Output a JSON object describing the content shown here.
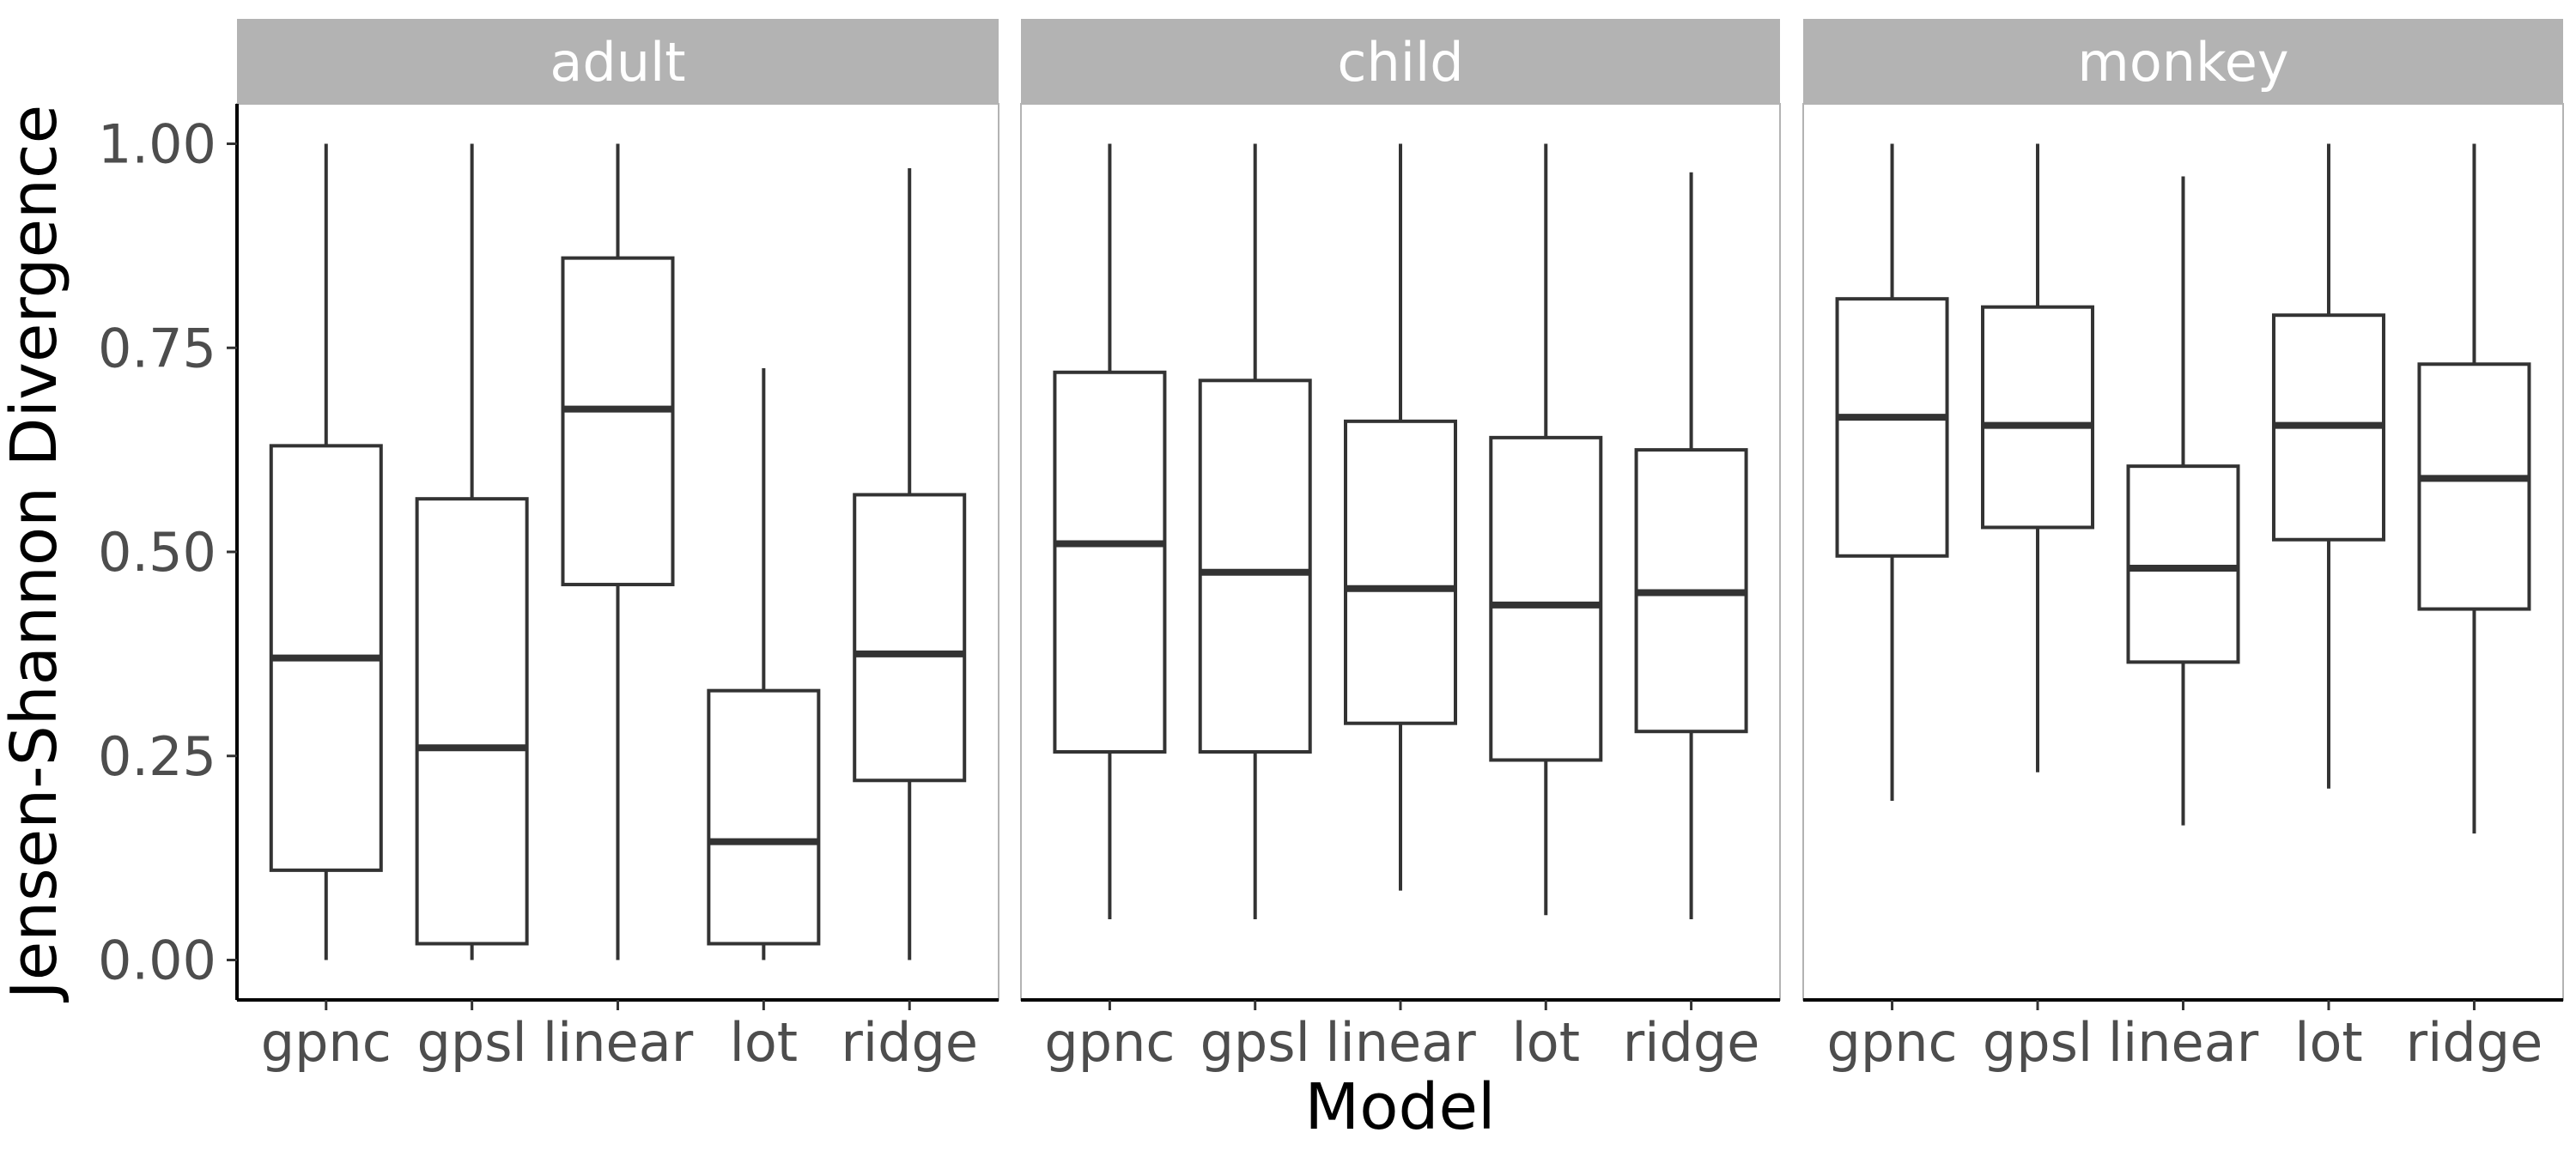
{
  "chart_data": {
    "type": "boxplot",
    "xlabel": "Model",
    "ylabel": "Jensen-Shannon Divergence",
    "ylim": [
      -0.05,
      1.05
    ],
    "yticks": [
      0.0,
      0.25,
      0.5,
      0.75,
      1.0
    ],
    "ytick_labels": [
      "0.00",
      "0.25",
      "0.50",
      "0.75",
      "1.00"
    ],
    "categories": [
      "gpnc",
      "gpsl",
      "linear",
      "lot",
      "ridge"
    ],
    "grid": false,
    "panels": [
      {
        "name": "adult",
        "boxes": [
          {
            "category": "gpnc",
            "min": 0.0,
            "q1": 0.11,
            "median": 0.37,
            "q3": 0.63,
            "max": 1.0
          },
          {
            "category": "gpsl",
            "min": 0.0,
            "q1": 0.02,
            "median": 0.26,
            "q3": 0.565,
            "max": 1.0
          },
          {
            "category": "linear",
            "min": 0.0,
            "q1": 0.46,
            "median": 0.675,
            "q3": 0.86,
            "max": 1.0
          },
          {
            "category": "lot",
            "min": 0.0,
            "q1": 0.02,
            "median": 0.145,
            "q3": 0.33,
            "max": 0.725
          },
          {
            "category": "ridge",
            "min": 0.0,
            "q1": 0.22,
            "median": 0.375,
            "q3": 0.57,
            "max": 0.97
          }
        ]
      },
      {
        "name": "child",
        "boxes": [
          {
            "category": "gpnc",
            "min": 0.05,
            "q1": 0.255,
            "median": 0.51,
            "q3": 0.72,
            "max": 1.0
          },
          {
            "category": "gpsl",
            "min": 0.05,
            "q1": 0.255,
            "median": 0.475,
            "q3": 0.71,
            "max": 1.0
          },
          {
            "category": "linear",
            "min": 0.085,
            "q1": 0.29,
            "median": 0.455,
            "q3": 0.66,
            "max": 1.0
          },
          {
            "category": "lot",
            "min": 0.055,
            "q1": 0.245,
            "median": 0.435,
            "q3": 0.64,
            "max": 1.0
          },
          {
            "category": "ridge",
            "min": 0.05,
            "q1": 0.28,
            "median": 0.45,
            "q3": 0.625,
            "max": 0.965
          }
        ]
      },
      {
        "name": "monkey",
        "boxes": [
          {
            "category": "gpnc",
            "min": 0.195,
            "q1": 0.495,
            "median": 0.665,
            "q3": 0.81,
            "max": 1.0
          },
          {
            "category": "gpsl",
            "min": 0.23,
            "q1": 0.53,
            "median": 0.655,
            "q3": 0.8,
            "max": 1.0
          },
          {
            "category": "linear",
            "min": 0.165,
            "q1": 0.365,
            "median": 0.48,
            "q3": 0.605,
            "max": 0.96
          },
          {
            "category": "lot",
            "min": 0.21,
            "q1": 0.515,
            "median": 0.655,
            "q3": 0.79,
            "max": 1.0
          },
          {
            "category": "ridge",
            "min": 0.155,
            "q1": 0.43,
            "median": 0.59,
            "q3": 0.73,
            "max": 1.0
          }
        ]
      }
    ]
  },
  "colors": {
    "strip_fill": "#b3b3b3",
    "box_line": "#333333",
    "axis_line": "#000000",
    "tick_text": "#4d4d4d",
    "panel_border": "#b3b3b3"
  }
}
